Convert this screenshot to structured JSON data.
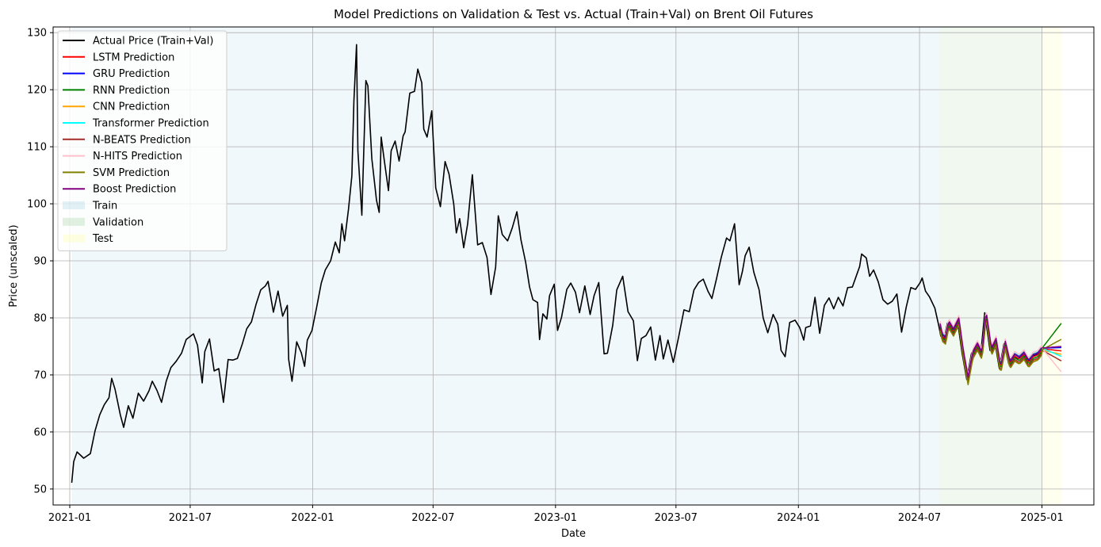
{
  "chart_data": {
    "type": "line",
    "title": "Model Predictions on Validation & Test vs. Actual (Train+Val) on Brent Oil Futures",
    "xlabel": "Date",
    "ylabel": "Price (unscaled)",
    "xlim": [
      "2020-12-07",
      "2025-03-20"
    ],
    "ylim": [
      47.2,
      131.0
    ],
    "x_ticks": [
      "2021-01",
      "2021-07",
      "2022-01",
      "2022-07",
      "2023-01",
      "2023-07",
      "2024-01",
      "2024-07",
      "2025-01"
    ],
    "y_ticks": [
      50,
      60,
      70,
      80,
      90,
      100,
      110,
      120,
      130
    ],
    "grid": true,
    "legend_placement": "top-left",
    "regions": [
      {
        "name": "Train",
        "start": "2021-01-04",
        "end": "2024-07-31",
        "color": "#add8e6"
      },
      {
        "name": "Validation",
        "start": "2024-07-31",
        "end": "2024-12-31",
        "color": "#a9d3a9"
      },
      {
        "name": "Test",
        "start": "2024-12-31",
        "end": "2025-01-31",
        "color": "#ffffa8"
      }
    ],
    "actual": {
      "name": "Actual Price (Train+Val)",
      "color": "#000000",
      "points": [
        [
          "2021-01-04",
          51.1
        ],
        [
          "2021-01-07",
          54.8
        ],
        [
          "2021-01-12",
          56.5
        ],
        [
          "2021-01-22",
          55.4
        ],
        [
          "2021-02-01",
          56.2
        ],
        [
          "2021-02-08",
          60.2
        ],
        [
          "2021-02-15",
          63.0
        ],
        [
          "2021-02-22",
          64.8
        ],
        [
          "2021-03-01",
          66.0
        ],
        [
          "2021-03-05",
          69.4
        ],
        [
          "2021-03-10",
          67.5
        ],
        [
          "2021-03-18",
          63.0
        ],
        [
          "2021-03-23",
          60.8
        ],
        [
          "2021-03-30",
          64.6
        ],
        [
          "2021-04-06",
          62.4
        ],
        [
          "2021-04-14",
          66.8
        ],
        [
          "2021-04-22",
          65.4
        ],
        [
          "2021-04-30",
          67.2
        ],
        [
          "2021-05-05",
          68.9
        ],
        [
          "2021-05-12",
          67.3
        ],
        [
          "2021-05-19",
          65.2
        ],
        [
          "2021-05-26",
          68.9
        ],
        [
          "2021-06-02",
          71.3
        ],
        [
          "2021-06-10",
          72.4
        ],
        [
          "2021-06-18",
          73.8
        ],
        [
          "2021-06-25",
          76.2
        ],
        [
          "2021-07-06",
          77.2
        ],
        [
          "2021-07-12",
          75.2
        ],
        [
          "2021-07-19",
          68.6
        ],
        [
          "2021-07-23",
          74.1
        ],
        [
          "2021-07-30",
          76.3
        ],
        [
          "2021-08-06",
          70.7
        ],
        [
          "2021-08-13",
          71.1
        ],
        [
          "2021-08-20",
          65.2
        ],
        [
          "2021-08-27",
          72.7
        ],
        [
          "2021-09-03",
          72.6
        ],
        [
          "2021-09-10",
          72.9
        ],
        [
          "2021-09-17",
          75.3
        ],
        [
          "2021-09-24",
          78.1
        ],
        [
          "2021-10-01",
          79.3
        ],
        [
          "2021-10-08",
          82.4
        ],
        [
          "2021-10-15",
          84.9
        ],
        [
          "2021-10-22",
          85.6
        ],
        [
          "2021-10-26",
          86.4
        ],
        [
          "2021-11-03",
          81.0
        ],
        [
          "2021-11-10",
          84.7
        ],
        [
          "2021-11-17",
          80.3
        ],
        [
          "2021-11-24",
          82.2
        ],
        [
          "2021-11-26",
          72.7
        ],
        [
          "2021-12-01",
          68.9
        ],
        [
          "2021-12-08",
          75.8
        ],
        [
          "2021-12-15",
          73.9
        ],
        [
          "2021-12-20",
          71.5
        ],
        [
          "2021-12-24",
          76.1
        ],
        [
          "2021-12-31",
          77.8
        ],
        [
          "2022-01-07",
          81.8
        ],
        [
          "2022-01-14",
          86.1
        ],
        [
          "2022-01-20",
          88.4
        ],
        [
          "2022-01-28",
          90.0
        ],
        [
          "2022-02-04",
          93.3
        ],
        [
          "2022-02-10",
          91.4
        ],
        [
          "2022-02-14",
          96.5
        ],
        [
          "2022-02-18",
          93.5
        ],
        [
          "2022-02-24",
          99.1
        ],
        [
          "2022-03-01",
          104.9
        ],
        [
          "2022-03-04",
          118.1
        ],
        [
          "2022-03-08",
          127.9
        ],
        [
          "2022-03-10",
          109.3
        ],
        [
          "2022-03-16",
          98.0
        ],
        [
          "2022-03-22",
          121.6
        ],
        [
          "2022-03-25",
          120.7
        ],
        [
          "2022-03-31",
          107.9
        ],
        [
          "2022-04-07",
          100.6
        ],
        [
          "2022-04-11",
          98.5
        ],
        [
          "2022-04-14",
          111.7
        ],
        [
          "2022-04-19",
          107.3
        ],
        [
          "2022-04-25",
          102.3
        ],
        [
          "2022-04-29",
          109.3
        ],
        [
          "2022-05-05",
          111.0
        ],
        [
          "2022-05-11",
          107.5
        ],
        [
          "2022-05-17",
          111.9
        ],
        [
          "2022-05-20",
          112.6
        ],
        [
          "2022-05-27",
          119.4
        ],
        [
          "2022-06-03",
          119.7
        ],
        [
          "2022-06-08",
          123.6
        ],
        [
          "2022-06-14",
          121.2
        ],
        [
          "2022-06-17",
          113.1
        ],
        [
          "2022-06-22",
          111.7
        ],
        [
          "2022-06-29",
          116.3
        ],
        [
          "2022-07-05",
          102.8
        ],
        [
          "2022-07-12",
          99.5
        ],
        [
          "2022-07-19",
          107.4
        ],
        [
          "2022-07-25",
          105.2
        ],
        [
          "2022-08-01",
          100.0
        ],
        [
          "2022-08-05",
          94.9
        ],
        [
          "2022-08-10",
          97.4
        ],
        [
          "2022-08-16",
          92.3
        ],
        [
          "2022-08-22",
          96.5
        ],
        [
          "2022-08-29",
          105.1
        ],
        [
          "2022-09-06",
          92.8
        ],
        [
          "2022-09-13",
          93.2
        ],
        [
          "2022-09-20",
          90.6
        ],
        [
          "2022-09-26",
          84.1
        ],
        [
          "2022-10-03",
          88.9
        ],
        [
          "2022-10-07",
          97.9
        ],
        [
          "2022-10-13",
          94.6
        ],
        [
          "2022-10-21",
          93.5
        ],
        [
          "2022-10-28",
          95.8
        ],
        [
          "2022-11-04",
          98.6
        ],
        [
          "2022-11-10",
          93.7
        ],
        [
          "2022-11-17",
          89.8
        ],
        [
          "2022-11-23",
          85.4
        ],
        [
          "2022-11-28",
          83.2
        ],
        [
          "2022-12-05",
          82.7
        ],
        [
          "2022-12-08",
          76.2
        ],
        [
          "2022-12-13",
          80.7
        ],
        [
          "2022-12-19",
          79.8
        ],
        [
          "2022-12-23",
          83.9
        ],
        [
          "2022-12-30",
          85.9
        ],
        [
          "2023-01-04",
          77.8
        ],
        [
          "2023-01-10",
          80.1
        ],
        [
          "2023-01-18",
          85.0
        ],
        [
          "2023-01-24",
          86.1
        ],
        [
          "2023-01-31",
          84.5
        ],
        [
          "2023-02-06",
          80.9
        ],
        [
          "2023-02-14",
          85.6
        ],
        [
          "2023-02-22",
          80.6
        ],
        [
          "2023-02-28",
          83.9
        ],
        [
          "2023-03-07",
          86.2
        ],
        [
          "2023-03-15",
          73.7
        ],
        [
          "2023-03-20",
          73.8
        ],
        [
          "2023-03-28",
          78.7
        ],
        [
          "2023-04-03",
          84.9
        ],
        [
          "2023-04-12",
          87.3
        ],
        [
          "2023-04-20",
          81.1
        ],
        [
          "2023-04-28",
          79.5
        ],
        [
          "2023-05-04",
          72.5
        ],
        [
          "2023-05-10",
          76.4
        ],
        [
          "2023-05-17",
          76.9
        ],
        [
          "2023-05-24",
          78.4
        ],
        [
          "2023-05-31",
          72.6
        ],
        [
          "2023-06-07",
          76.9
        ],
        [
          "2023-06-12",
          72.8
        ],
        [
          "2023-06-19",
          76.1
        ],
        [
          "2023-06-27",
          72.2
        ],
        [
          "2023-07-05",
          76.6
        ],
        [
          "2023-07-13",
          81.4
        ],
        [
          "2023-07-21",
          81.1
        ],
        [
          "2023-07-28",
          84.9
        ],
        [
          "2023-08-04",
          86.2
        ],
        [
          "2023-08-11",
          86.8
        ],
        [
          "2023-08-18",
          84.7
        ],
        [
          "2023-08-24",
          83.4
        ],
        [
          "2023-08-31",
          86.9
        ],
        [
          "2023-09-07",
          90.6
        ],
        [
          "2023-09-15",
          94.0
        ],
        [
          "2023-09-20",
          93.5
        ],
        [
          "2023-09-27",
          96.5
        ],
        [
          "2023-10-04",
          85.8
        ],
        [
          "2023-10-09",
          88.2
        ],
        [
          "2023-10-13",
          90.9
        ],
        [
          "2023-10-19",
          92.4
        ],
        [
          "2023-10-26",
          88.0
        ],
        [
          "2023-11-03",
          84.9
        ],
        [
          "2023-11-09",
          80.0
        ],
        [
          "2023-11-16",
          77.4
        ],
        [
          "2023-11-24",
          80.6
        ],
        [
          "2023-12-01",
          78.9
        ],
        [
          "2023-12-06",
          74.3
        ],
        [
          "2023-12-12",
          73.2
        ],
        [
          "2023-12-19",
          79.2
        ],
        [
          "2023-12-27",
          79.6
        ],
        [
          "2024-01-03",
          78.3
        ],
        [
          "2024-01-09",
          76.1
        ],
        [
          "2024-01-12",
          78.3
        ],
        [
          "2024-01-19",
          78.6
        ],
        [
          "2024-01-26",
          83.6
        ],
        [
          "2024-02-02",
          77.3
        ],
        [
          "2024-02-09",
          82.2
        ],
        [
          "2024-02-16",
          83.5
        ],
        [
          "2024-02-23",
          81.6
        ],
        [
          "2024-03-01",
          83.6
        ],
        [
          "2024-03-08",
          82.1
        ],
        [
          "2024-03-15",
          85.3
        ],
        [
          "2024-03-22",
          85.4
        ],
        [
          "2024-04-02",
          89.0
        ],
        [
          "2024-04-05",
          91.2
        ],
        [
          "2024-04-12",
          90.5
        ],
        [
          "2024-04-17",
          87.3
        ],
        [
          "2024-04-23",
          88.4
        ],
        [
          "2024-04-30",
          86.3
        ],
        [
          "2024-05-07",
          83.2
        ],
        [
          "2024-05-14",
          82.4
        ],
        [
          "2024-05-21",
          82.9
        ],
        [
          "2024-05-28",
          84.2
        ],
        [
          "2024-06-04",
          77.5
        ],
        [
          "2024-06-11",
          81.9
        ],
        [
          "2024-06-18",
          85.3
        ],
        [
          "2024-06-25",
          85.0
        ],
        [
          "2024-07-02",
          86.2
        ],
        [
          "2024-07-05",
          87.0
        ],
        [
          "2024-07-10",
          84.7
        ],
        [
          "2024-07-16",
          83.7
        ],
        [
          "2024-07-24",
          81.7
        ],
        [
          "2024-07-30",
          78.6
        ],
        [
          "2024-08-02",
          76.8
        ],
        [
          "2024-08-07",
          76.3
        ],
        [
          "2024-08-12",
          79.1
        ],
        [
          "2024-08-19",
          77.7
        ],
        [
          "2024-08-27",
          79.6
        ],
        [
          "2024-09-03",
          73.8
        ],
        [
          "2024-09-10",
          69.2
        ],
        [
          "2024-09-17",
          73.7
        ],
        [
          "2024-09-24",
          75.2
        ],
        [
          "2024-10-01",
          73.6
        ],
        [
          "2024-10-07",
          80.9
        ],
        [
          "2024-10-15",
          74.3
        ],
        [
          "2024-10-22",
          76.0
        ],
        [
          "2024-10-29",
          71.1
        ],
        [
          "2024-11-05",
          75.5
        ],
        [
          "2024-11-12",
          72.0
        ],
        [
          "2024-11-19",
          73.3
        ],
        [
          "2024-11-26",
          72.8
        ],
        [
          "2024-12-03",
          73.6
        ],
        [
          "2024-12-10",
          72.2
        ],
        [
          "2024-12-17",
          73.2
        ],
        [
          "2024-12-24",
          73.5
        ],
        [
          "2024-12-31",
          74.6
        ]
      ]
    },
    "predictions": [
      {
        "name": "LSTM Prediction",
        "color": "#ff0000",
        "offset": 0.0,
        "final": 74.2
      },
      {
        "name": "GRU Prediction",
        "color": "#0000ff",
        "offset": 0.3,
        "final": 74.8
      },
      {
        "name": "RNN Prediction",
        "color": "#008000",
        "offset": -0.3,
        "final": 79.2
      },
      {
        "name": "CNN Prediction",
        "color": "#ffa500",
        "offset": -0.8,
        "final": 73.6
      },
      {
        "name": "Transformer Prediction",
        "color": "#00ffff",
        "offset": 0.5,
        "final": 73.2
      },
      {
        "name": "N-BEATS Prediction",
        "color": "#a52a2a",
        "offset": -0.6,
        "final": 72.4
      },
      {
        "name": "N-HITS Prediction",
        "color": "#ffc0cb",
        "offset": 0.8,
        "final": 70.4
      },
      {
        "name": "SVM Prediction",
        "color": "#808000",
        "offset": -0.9,
        "final": 76.3
      },
      {
        "name": "Boost Prediction",
        "color": "#800080",
        "offset": 0.4,
        "final": 75.0
      }
    ],
    "prediction_start": "2024-08-01",
    "prediction_end": "2025-01-31"
  }
}
